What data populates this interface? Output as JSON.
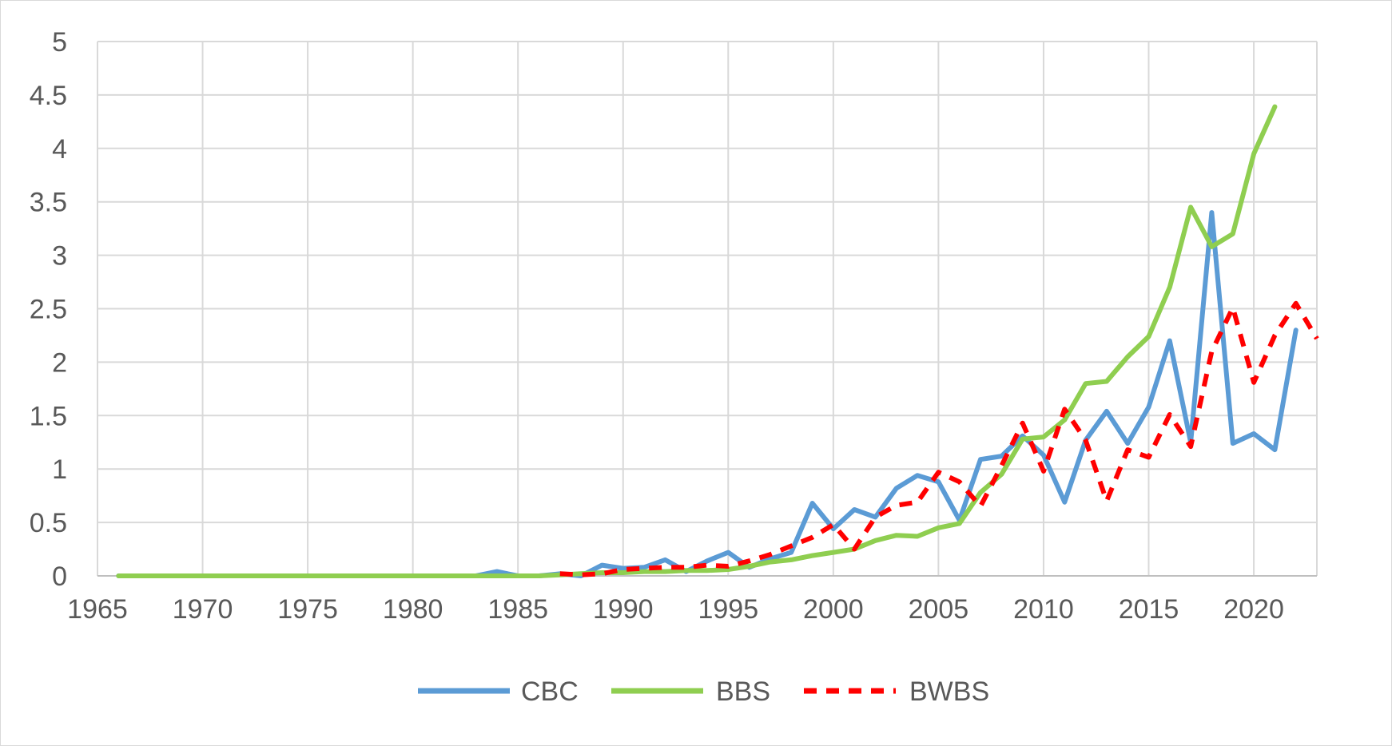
{
  "chart_data": {
    "type": "line",
    "title": "",
    "xlabel": "",
    "ylabel": "",
    "xlim": [
      1965,
      2023
    ],
    "ylim": [
      0,
      5
    ],
    "x_ticks": [
      1965,
      1970,
      1975,
      1980,
      1985,
      1990,
      1995,
      2000,
      2005,
      2010,
      2015,
      2020
    ],
    "y_ticks": [
      0,
      0.5,
      1,
      1.5,
      2,
      2.5,
      3,
      3.5,
      4,
      4.5,
      5
    ],
    "grid": true,
    "legend_position": "bottom",
    "series": [
      {
        "name": "CBC",
        "color": "#5b9bd5",
        "dash": "solid",
        "points": [
          [
            1966,
            0
          ],
          [
            1967,
            0
          ],
          [
            1968,
            0
          ],
          [
            1969,
            0
          ],
          [
            1970,
            0
          ],
          [
            1971,
            0
          ],
          [
            1972,
            0
          ],
          [
            1973,
            0
          ],
          [
            1974,
            0
          ],
          [
            1975,
            0
          ],
          [
            1976,
            0
          ],
          [
            1977,
            0
          ],
          [
            1978,
            0
          ],
          [
            1979,
            0
          ],
          [
            1980,
            0
          ],
          [
            1981,
            0
          ],
          [
            1982,
            0
          ],
          [
            1983,
            0
          ],
          [
            1984,
            0.04
          ],
          [
            1985,
            0
          ],
          [
            1986,
            0
          ],
          [
            1987,
            0.02
          ],
          [
            1988,
            0
          ],
          [
            1989,
            0.1
          ],
          [
            1990,
            0.07
          ],
          [
            1991,
            0.08
          ],
          [
            1992,
            0.15
          ],
          [
            1993,
            0.04
          ],
          [
            1994,
            0.14
          ],
          [
            1995,
            0.22
          ],
          [
            1996,
            0.08
          ],
          [
            1997,
            0.16
          ],
          [
            1998,
            0.22
          ],
          [
            1999,
            0.68
          ],
          [
            2000,
            0.44
          ],
          [
            2001,
            0.62
          ],
          [
            2002,
            0.55
          ],
          [
            2003,
            0.82
          ],
          [
            2004,
            0.94
          ],
          [
            2005,
            0.88
          ],
          [
            2006,
            0.52
          ],
          [
            2007,
            1.09
          ],
          [
            2008,
            1.12
          ],
          [
            2009,
            1.31
          ],
          [
            2010,
            1.13
          ],
          [
            2011,
            0.69
          ],
          [
            2012,
            1.27
          ],
          [
            2013,
            1.54
          ],
          [
            2014,
            1.24
          ],
          [
            2015,
            1.58
          ],
          [
            2016,
            2.2
          ],
          [
            2017,
            1.25
          ],
          [
            2018,
            3.4
          ],
          [
            2019,
            1.24
          ],
          [
            2020,
            1.33
          ],
          [
            2021,
            1.18
          ],
          [
            2022,
            2.3
          ]
        ]
      },
      {
        "name": "BBS",
        "color": "#8fce50",
        "dash": "solid",
        "points": [
          [
            1966,
            0
          ],
          [
            1967,
            0
          ],
          [
            1968,
            0
          ],
          [
            1969,
            0
          ],
          [
            1970,
            0
          ],
          [
            1971,
            0
          ],
          [
            1972,
            0
          ],
          [
            1973,
            0
          ],
          [
            1974,
            0
          ],
          [
            1975,
            0
          ],
          [
            1976,
            0
          ],
          [
            1977,
            0
          ],
          [
            1978,
            0
          ],
          [
            1979,
            0
          ],
          [
            1980,
            0
          ],
          [
            1981,
            0
          ],
          [
            1982,
            0
          ],
          [
            1983,
            0
          ],
          [
            1984,
            0
          ],
          [
            1985,
            0
          ],
          [
            1986,
            0
          ],
          [
            1987,
            0.01
          ],
          [
            1988,
            0.02
          ],
          [
            1989,
            0.03
          ],
          [
            1990,
            0.03
          ],
          [
            1991,
            0.04
          ],
          [
            1992,
            0.04
          ],
          [
            1993,
            0.05
          ],
          [
            1994,
            0.05
          ],
          [
            1995,
            0.06
          ],
          [
            1996,
            0.09
          ],
          [
            1997,
            0.13
          ],
          [
            1998,
            0.15
          ],
          [
            1999,
            0.19
          ],
          [
            2000,
            0.22
          ],
          [
            2001,
            0.25
          ],
          [
            2002,
            0.33
          ],
          [
            2003,
            0.38
          ],
          [
            2004,
            0.37
          ],
          [
            2005,
            0.45
          ],
          [
            2006,
            0.49
          ],
          [
            2007,
            0.78
          ],
          [
            2008,
            0.95
          ],
          [
            2009,
            1.28
          ],
          [
            2010,
            1.3
          ],
          [
            2011,
            1.46
          ],
          [
            2012,
            1.8
          ],
          [
            2013,
            1.82
          ],
          [
            2014,
            2.05
          ],
          [
            2015,
            2.24
          ],
          [
            2016,
            2.7
          ],
          [
            2017,
            3.45
          ],
          [
            2018,
            3.08
          ],
          [
            2019,
            3.2
          ],
          [
            2020,
            3.95
          ],
          [
            2021,
            4.39
          ]
        ]
      },
      {
        "name": "BWBS",
        "color": "#ff0000",
        "dash": "dashed",
        "points": [
          [
            1987,
            0.02
          ],
          [
            1988,
            0.01
          ],
          [
            1989,
            0.02
          ],
          [
            1990,
            0.06
          ],
          [
            1991,
            0.07
          ],
          [
            1992,
            0.08
          ],
          [
            1993,
            0.08
          ],
          [
            1994,
            0.1
          ],
          [
            1995,
            0.09
          ],
          [
            1996,
            0.14
          ],
          [
            1997,
            0.2
          ],
          [
            1998,
            0.28
          ],
          [
            1999,
            0.36
          ],
          [
            2000,
            0.48
          ],
          [
            2001,
            0.25
          ],
          [
            2002,
            0.55
          ],
          [
            2003,
            0.66
          ],
          [
            2004,
            0.69
          ],
          [
            2005,
            0.97
          ],
          [
            2006,
            0.88
          ],
          [
            2007,
            0.65
          ],
          [
            2008,
            1.03
          ],
          [
            2009,
            1.43
          ],
          [
            2010,
            0.98
          ],
          [
            2011,
            1.56
          ],
          [
            2012,
            1.27
          ],
          [
            2013,
            0.7
          ],
          [
            2014,
            1.18
          ],
          [
            2015,
            1.11
          ],
          [
            2016,
            1.51
          ],
          [
            2017,
            1.21
          ],
          [
            2018,
            2.1
          ],
          [
            2019,
            2.51
          ],
          [
            2020,
            1.81
          ],
          [
            2021,
            2.25
          ],
          [
            2022,
            2.55
          ],
          [
            2023,
            2.22
          ]
        ]
      }
    ]
  }
}
